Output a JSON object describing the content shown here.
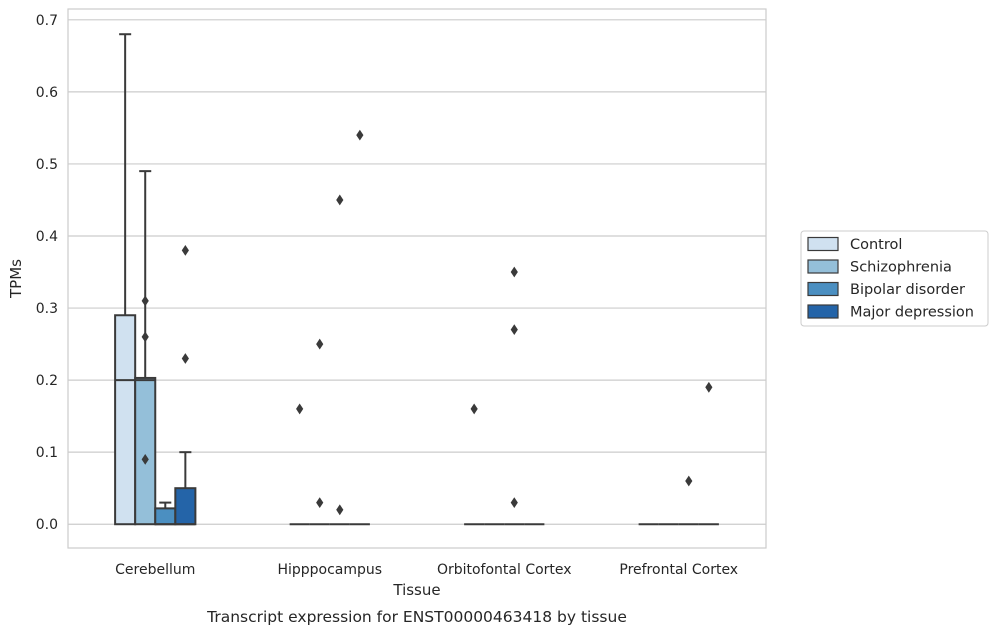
{
  "caption": "Transcript expression for ENST00000463418 by tissue",
  "colors": {
    "Control": "#d0e1f0",
    "Schizophrenia": "#94bfd9",
    "Bipolar disorder": "#4b8fc1",
    "Major depression": "#2464a8",
    "line": "#3a3a3a",
    "grid": "#cccccc",
    "frame": "#cccccc"
  },
  "chart_data": {
    "type": "box",
    "xlabel": "Tissue",
    "ylabel": "TPMs",
    "ylim": [
      -0.033,
      0.715
    ],
    "yticks": [
      0.0,
      0.1,
      0.2,
      0.3,
      0.4,
      0.5,
      0.6,
      0.7
    ],
    "ytick_labels": [
      "0.0",
      "0.1",
      "0.2",
      "0.3",
      "0.4",
      "0.5",
      "0.6",
      "0.7"
    ],
    "grid": "horizontal",
    "legend_position": "right",
    "categories": [
      "Cerebellum",
      "Hipppocampus",
      "Orbitofontal Cortex",
      "Prefrontal Cortex"
    ],
    "series": [
      {
        "name": "Control",
        "boxes": [
          {
            "q1": 0.0,
            "median": 0.2,
            "q3": 0.29,
            "whislo": 0.0,
            "whishi": 0.68,
            "fliers": []
          },
          {
            "q1": 0.0,
            "median": 0.0,
            "q3": 0.0,
            "whislo": 0.0,
            "whishi": 0.0,
            "fliers": [
              0.16
            ]
          },
          {
            "q1": 0.0,
            "median": 0.0,
            "q3": 0.0,
            "whislo": 0.0,
            "whishi": 0.0,
            "fliers": [
              0.16
            ]
          },
          {
            "q1": 0.0,
            "median": 0.0,
            "q3": 0.0,
            "whislo": 0.0,
            "whishi": 0.0,
            "fliers": []
          }
        ]
      },
      {
        "name": "Schizophrenia",
        "boxes": [
          {
            "q1": 0.0,
            "median": 0.2,
            "q3": 0.203,
            "whislo": 0.0,
            "whishi": 0.49,
            "fliers": [
              0.31,
              0.26,
              0.09
            ]
          },
          {
            "q1": 0.0,
            "median": 0.0,
            "q3": 0.0,
            "whislo": 0.0,
            "whishi": 0.0,
            "fliers": [
              0.25,
              0.03
            ]
          },
          {
            "q1": 0.0,
            "median": 0.0,
            "q3": 0.0,
            "whislo": 0.0,
            "whishi": 0.0,
            "fliers": []
          },
          {
            "q1": 0.0,
            "median": 0.0,
            "q3": 0.0,
            "whislo": 0.0,
            "whishi": 0.0,
            "fliers": []
          }
        ]
      },
      {
        "name": "Bipolar disorder",
        "boxes": [
          {
            "q1": 0.0,
            "median": 0.0,
            "q3": 0.022,
            "whislo": 0.0,
            "whishi": 0.03,
            "fliers": []
          },
          {
            "q1": 0.0,
            "median": 0.0,
            "q3": 0.0,
            "whislo": 0.0,
            "whishi": 0.0,
            "fliers": [
              0.45,
              0.02
            ]
          },
          {
            "q1": 0.0,
            "median": 0.0,
            "q3": 0.0,
            "whislo": 0.0,
            "whishi": 0.0,
            "fliers": [
              0.35,
              0.27,
              0.03
            ]
          },
          {
            "q1": 0.0,
            "median": 0.0,
            "q3": 0.0,
            "whislo": 0.0,
            "whishi": 0.0,
            "fliers": [
              0.06
            ]
          }
        ]
      },
      {
        "name": "Major depression",
        "boxes": [
          {
            "q1": 0.0,
            "median": 0.0,
            "q3": 0.05,
            "whislo": 0.0,
            "whishi": 0.1,
            "fliers": [
              0.38,
              0.23
            ]
          },
          {
            "q1": 0.0,
            "median": 0.0,
            "q3": 0.0,
            "whislo": 0.0,
            "whishi": 0.0,
            "fliers": [
              0.54
            ]
          },
          {
            "q1": 0.0,
            "median": 0.0,
            "q3": 0.0,
            "whislo": 0.0,
            "whishi": 0.0,
            "fliers": []
          },
          {
            "q1": 0.0,
            "median": 0.0,
            "q3": 0.0,
            "whislo": 0.0,
            "whishi": 0.0,
            "fliers": [
              0.19
            ]
          }
        ]
      }
    ]
  }
}
